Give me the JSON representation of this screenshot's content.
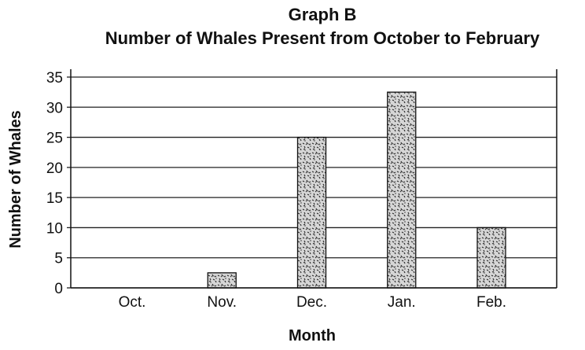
{
  "chart_data": {
    "type": "bar",
    "title": "Graph B",
    "subtitle": "Number of Whales Present from October to February",
    "xlabel": "Month",
    "ylabel": "Number of Whales",
    "categories": [
      "Oct.",
      "Nov.",
      "Dec.",
      "Jan.",
      "Feb."
    ],
    "values": [
      0,
      2.5,
      25,
      32.5,
      10
    ],
    "ylim": [
      0,
      35
    ],
    "yticks": [
      "0",
      "5",
      "10",
      "15",
      "20",
      "25",
      "30",
      "35"
    ],
    "grid": true,
    "bar_style": "speckled pattern",
    "colors": {
      "bar_fill": "#d6d6d6",
      "bar_speckle": "#2a2a2a",
      "bar_edge": "#111111",
      "grid": "#222222"
    }
  }
}
